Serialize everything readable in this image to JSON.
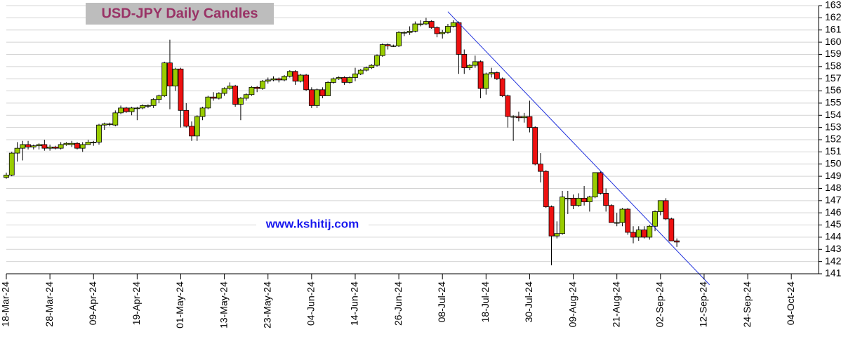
{
  "chart_data": {
    "type": "candlestick",
    "title": "USD-JPY Daily Candles",
    "annotation": "www.kshitij.com",
    "up_color": "#99cc00",
    "down_color": "#ee1111",
    "grid": true,
    "xlim": [
      "18-Mar-24",
      "11-Oct-24"
    ],
    "xticks": [
      "18-Mar-24",
      "28-Mar-24",
      "09-Apr-24",
      "19-Apr-24",
      "01-May-24",
      "13-May-24",
      "23-May-24",
      "04-Jun-24",
      "14-Jun-24",
      "26-Jun-24",
      "08-Jul-24",
      "18-Jul-24",
      "30-Jul-24",
      "09-Aug-24",
      "21-Aug-24",
      "02-Sep-24",
      "12-Sep-24",
      "24-Sep-24",
      "04-Oct-24"
    ],
    "ylim": [
      141,
      163
    ],
    "yticks": [
      141,
      142,
      143,
      144,
      145,
      146,
      147,
      148,
      149,
      150,
      151,
      152,
      153,
      154,
      155,
      156,
      157,
      158,
      159,
      160,
      161,
      162,
      163
    ],
    "trendline": {
      "color": "#2233dd",
      "x": [
        "09-Jul-24",
        "13-Sep-24"
      ],
      "y": [
        162.5,
        140.1
      ]
    },
    "candles": [
      {
        "date": "18-Mar-24",
        "open": 148.9,
        "high": 149.3,
        "low": 148.8,
        "close": 149.1
      },
      {
        "date": "19-Mar-24",
        "open": 149.1,
        "high": 151.0,
        "low": 149.0,
        "close": 150.9
      },
      {
        "date": "20-Mar-24",
        "open": 150.9,
        "high": 151.8,
        "low": 150.2,
        "close": 151.3
      },
      {
        "date": "21-Mar-24",
        "open": 151.3,
        "high": 151.9,
        "low": 150.3,
        "close": 151.6
      },
      {
        "date": "22-Mar-24",
        "open": 151.6,
        "high": 151.9,
        "low": 151.2,
        "close": 151.4
      },
      {
        "date": "25-Mar-24",
        "open": 151.4,
        "high": 151.6,
        "low": 151.2,
        "close": 151.5
      },
      {
        "date": "26-Mar-24",
        "open": 151.5,
        "high": 151.7,
        "low": 151.2,
        "close": 151.6
      },
      {
        "date": "27-Mar-24",
        "open": 151.6,
        "high": 152.0,
        "low": 151.1,
        "close": 151.3
      },
      {
        "date": "28-Mar-24",
        "open": 151.3,
        "high": 151.6,
        "low": 151.1,
        "close": 151.4
      },
      {
        "date": "29-Mar-24",
        "open": 151.4,
        "high": 151.5,
        "low": 151.2,
        "close": 151.3
      },
      {
        "date": "01-Apr-24",
        "open": 151.3,
        "high": 151.8,
        "low": 151.2,
        "close": 151.6
      },
      {
        "date": "02-Apr-24",
        "open": 151.6,
        "high": 151.8,
        "low": 151.5,
        "close": 151.7
      },
      {
        "date": "03-Apr-24",
        "open": 151.6,
        "high": 151.9,
        "low": 151.4,
        "close": 151.7
      },
      {
        "date": "04-Apr-24",
        "open": 151.7,
        "high": 151.8,
        "low": 151.2,
        "close": 151.3
      },
      {
        "date": "05-Apr-24",
        "open": 151.3,
        "high": 151.8,
        "low": 151.0,
        "close": 151.6
      },
      {
        "date": "08-Apr-24",
        "open": 151.6,
        "high": 152.0,
        "low": 151.6,
        "close": 151.8
      },
      {
        "date": "09-Apr-24",
        "open": 151.8,
        "high": 151.9,
        "low": 151.5,
        "close": 151.8
      },
      {
        "date": "10-Apr-24",
        "open": 151.8,
        "high": 153.3,
        "low": 151.6,
        "close": 153.2
      },
      {
        "date": "11-Apr-24",
        "open": 153.2,
        "high": 153.4,
        "low": 152.8,
        "close": 153.3
      },
      {
        "date": "12-Apr-24",
        "open": 153.3,
        "high": 153.4,
        "low": 153.1,
        "close": 153.3
      },
      {
        "date": "15-Apr-24",
        "open": 153.2,
        "high": 154.4,
        "low": 153.1,
        "close": 154.2
      },
      {
        "date": "16-Apr-24",
        "open": 154.2,
        "high": 154.8,
        "low": 154.1,
        "close": 154.6
      },
      {
        "date": "17-Apr-24",
        "open": 154.6,
        "high": 154.7,
        "low": 154.2,
        "close": 154.3
      },
      {
        "date": "18-Apr-24",
        "open": 154.3,
        "high": 154.7,
        "low": 154.0,
        "close": 154.6
      },
      {
        "date": "19-Apr-24",
        "open": 154.6,
        "high": 154.7,
        "low": 153.6,
        "close": 154.6
      },
      {
        "date": "22-Apr-24",
        "open": 154.6,
        "high": 154.9,
        "low": 154.5,
        "close": 154.8
      },
      {
        "date": "23-Apr-24",
        "open": 154.8,
        "high": 154.9,
        "low": 154.6,
        "close": 154.8
      },
      {
        "date": "24-Apr-24",
        "open": 154.8,
        "high": 155.4,
        "low": 154.6,
        "close": 155.3
      },
      {
        "date": "25-Apr-24",
        "open": 155.3,
        "high": 155.7,
        "low": 155.0,
        "close": 155.6
      },
      {
        "date": "26-Apr-24",
        "open": 155.6,
        "high": 158.4,
        "low": 155.5,
        "close": 158.3
      },
      {
        "date": "29-Apr-24",
        "open": 158.3,
        "high": 160.2,
        "low": 154.5,
        "close": 156.4
      },
      {
        "date": "30-Apr-24",
        "open": 156.4,
        "high": 157.9,
        "low": 156.0,
        "close": 157.8
      },
      {
        "date": "01-May-24",
        "open": 157.8,
        "high": 157.9,
        "low": 153.0,
        "close": 154.4
      },
      {
        "date": "02-May-24",
        "open": 154.4,
        "high": 155.0,
        "low": 153.0,
        "close": 153.1
      },
      {
        "date": "03-May-24",
        "open": 153.1,
        "high": 153.5,
        "low": 151.9,
        "close": 152.3
      },
      {
        "date": "06-May-24",
        "open": 152.3,
        "high": 154.0,
        "low": 151.9,
        "close": 153.9
      },
      {
        "date": "07-May-24",
        "open": 153.9,
        "high": 154.7,
        "low": 153.6,
        "close": 154.6
      },
      {
        "date": "08-May-24",
        "open": 154.6,
        "high": 155.6,
        "low": 154.5,
        "close": 155.5
      },
      {
        "date": "09-May-24",
        "open": 155.5,
        "high": 155.9,
        "low": 155.2,
        "close": 155.4
      },
      {
        "date": "10-May-24",
        "open": 155.4,
        "high": 155.9,
        "low": 155.3,
        "close": 155.8
      },
      {
        "date": "13-May-24",
        "open": 155.8,
        "high": 156.3,
        "low": 155.6,
        "close": 156.2
      },
      {
        "date": "14-May-24",
        "open": 156.2,
        "high": 156.7,
        "low": 156.1,
        "close": 156.4
      },
      {
        "date": "15-May-24",
        "open": 156.4,
        "high": 156.5,
        "low": 154.7,
        "close": 154.9
      },
      {
        "date": "16-May-24",
        "open": 154.9,
        "high": 155.5,
        "low": 153.6,
        "close": 155.4
      },
      {
        "date": "17-May-24",
        "open": 155.4,
        "high": 155.8,
        "low": 155.2,
        "close": 155.7
      },
      {
        "date": "20-May-24",
        "open": 155.7,
        "high": 156.4,
        "low": 155.6,
        "close": 156.3
      },
      {
        "date": "21-May-24",
        "open": 156.3,
        "high": 156.4,
        "low": 155.9,
        "close": 156.2
      },
      {
        "date": "22-May-24",
        "open": 156.2,
        "high": 156.9,
        "low": 156.1,
        "close": 156.8
      },
      {
        "date": "23-May-24",
        "open": 156.8,
        "high": 157.1,
        "low": 156.6,
        "close": 156.9
      },
      {
        "date": "24-May-24",
        "open": 156.9,
        "high": 157.2,
        "low": 156.8,
        "close": 157.0
      },
      {
        "date": "27-May-24",
        "open": 157.0,
        "high": 157.1,
        "low": 156.7,
        "close": 156.9
      },
      {
        "date": "28-May-24",
        "open": 156.9,
        "high": 157.3,
        "low": 156.8,
        "close": 157.2
      },
      {
        "date": "29-May-24",
        "open": 157.2,
        "high": 157.7,
        "low": 157.1,
        "close": 157.6
      },
      {
        "date": "30-May-24",
        "open": 157.6,
        "high": 157.7,
        "low": 156.5,
        "close": 156.8
      },
      {
        "date": "31-May-24",
        "open": 156.8,
        "high": 157.4,
        "low": 156.7,
        "close": 157.3
      },
      {
        "date": "03-Jun-24",
        "open": 157.3,
        "high": 157.4,
        "low": 156.0,
        "close": 156.1
      },
      {
        "date": "04-Jun-24",
        "open": 156.1,
        "high": 156.3,
        "low": 154.6,
        "close": 154.8
      },
      {
        "date": "05-Jun-24",
        "open": 154.8,
        "high": 156.2,
        "low": 154.6,
        "close": 156.1
      },
      {
        "date": "06-Jun-24",
        "open": 156.1,
        "high": 156.3,
        "low": 155.4,
        "close": 155.6
      },
      {
        "date": "07-Jun-24",
        "open": 155.6,
        "high": 156.8,
        "low": 155.6,
        "close": 156.7
      },
      {
        "date": "10-Jun-24",
        "open": 156.7,
        "high": 157.1,
        "low": 156.6,
        "close": 157.0
      },
      {
        "date": "11-Jun-24",
        "open": 157.0,
        "high": 157.2,
        "low": 156.9,
        "close": 157.1
      },
      {
        "date": "12-Jun-24",
        "open": 157.1,
        "high": 157.2,
        "low": 156.5,
        "close": 156.7
      },
      {
        "date": "13-Jun-24",
        "open": 156.7,
        "high": 157.2,
        "low": 156.6,
        "close": 157.1
      },
      {
        "date": "14-Jun-24",
        "open": 157.1,
        "high": 157.9,
        "low": 156.8,
        "close": 157.4
      },
      {
        "date": "17-Jun-24",
        "open": 157.4,
        "high": 157.8,
        "low": 157.3,
        "close": 157.7
      },
      {
        "date": "18-Jun-24",
        "open": 157.7,
        "high": 158.0,
        "low": 157.6,
        "close": 157.9
      },
      {
        "date": "19-Jun-24",
        "open": 157.9,
        "high": 158.2,
        "low": 157.8,
        "close": 158.1
      },
      {
        "date": "20-Jun-24",
        "open": 158.1,
        "high": 159.0,
        "low": 158.0,
        "close": 158.9
      },
      {
        "date": "21-Jun-24",
        "open": 158.9,
        "high": 159.9,
        "low": 158.8,
        "close": 159.8
      },
      {
        "date": "24-Jun-24",
        "open": 159.8,
        "high": 159.9,
        "low": 159.4,
        "close": 159.7
      },
      {
        "date": "25-Jun-24",
        "open": 159.7,
        "high": 159.8,
        "low": 159.6,
        "close": 159.7
      },
      {
        "date": "26-Jun-24",
        "open": 159.7,
        "high": 160.9,
        "low": 159.6,
        "close": 160.8
      },
      {
        "date": "27-Jun-24",
        "open": 160.8,
        "high": 160.9,
        "low": 160.5,
        "close": 160.8
      },
      {
        "date": "28-Jun-24",
        "open": 160.8,
        "high": 161.3,
        "low": 160.6,
        "close": 160.9
      },
      {
        "date": "01-Jul-24",
        "open": 160.9,
        "high": 161.7,
        "low": 160.8,
        "close": 161.5
      },
      {
        "date": "02-Jul-24",
        "open": 161.5,
        "high": 161.8,
        "low": 161.3,
        "close": 161.5
      },
      {
        "date": "03-Jul-24",
        "open": 161.5,
        "high": 162.0,
        "low": 161.4,
        "close": 161.7
      },
      {
        "date": "04-Jul-24",
        "open": 161.7,
        "high": 161.8,
        "low": 161.1,
        "close": 161.2
      },
      {
        "date": "05-Jul-24",
        "open": 161.2,
        "high": 161.3,
        "low": 160.4,
        "close": 160.7
      },
      {
        "date": "08-Jul-24",
        "open": 160.7,
        "high": 161.0,
        "low": 160.3,
        "close": 160.8
      },
      {
        "date": "09-Jul-24",
        "open": 160.8,
        "high": 161.5,
        "low": 160.7,
        "close": 161.3
      },
      {
        "date": "10-Jul-24",
        "open": 161.3,
        "high": 161.8,
        "low": 161.2,
        "close": 161.6
      },
      {
        "date": "11-Jul-24",
        "open": 161.6,
        "high": 161.7,
        "low": 157.4,
        "close": 159.0
      },
      {
        "date": "12-Jul-24",
        "open": 159.0,
        "high": 159.4,
        "low": 157.4,
        "close": 157.9
      },
      {
        "date": "15-Jul-24",
        "open": 157.9,
        "high": 158.2,
        "low": 157.7,
        "close": 158.1
      },
      {
        "date": "16-Jul-24",
        "open": 158.1,
        "high": 158.9,
        "low": 157.9,
        "close": 158.4
      },
      {
        "date": "17-Jul-24",
        "open": 158.4,
        "high": 158.5,
        "low": 155.4,
        "close": 156.2
      },
      {
        "date": "18-Jul-24",
        "open": 156.2,
        "high": 157.5,
        "low": 155.7,
        "close": 157.4
      },
      {
        "date": "19-Jul-24",
        "open": 157.4,
        "high": 157.9,
        "low": 157.1,
        "close": 157.5
      },
      {
        "date": "22-Jul-24",
        "open": 157.5,
        "high": 157.6,
        "low": 156.9,
        "close": 157.0
      },
      {
        "date": "23-Jul-24",
        "open": 157.0,
        "high": 157.1,
        "low": 155.5,
        "close": 155.6
      },
      {
        "date": "24-Jul-24",
        "open": 155.6,
        "high": 155.7,
        "low": 153.0,
        "close": 153.9
      },
      {
        "date": "25-Jul-24",
        "open": 153.9,
        "high": 154.0,
        "low": 151.9,
        "close": 153.9
      },
      {
        "date": "26-Jul-24",
        "open": 153.9,
        "high": 154.3,
        "low": 153.5,
        "close": 153.8
      },
      {
        "date": "29-Jul-24",
        "open": 153.8,
        "high": 154.2,
        "low": 153.4,
        "close": 153.9
      },
      {
        "date": "30-Jul-24",
        "open": 153.9,
        "high": 155.2,
        "low": 152.6,
        "close": 153.0
      },
      {
        "date": "31-Jul-24",
        "open": 153.0,
        "high": 153.1,
        "low": 149.9,
        "close": 150.0
      },
      {
        "date": "01-Aug-24",
        "open": 150.0,
        "high": 150.9,
        "low": 148.5,
        "close": 149.4
      },
      {
        "date": "02-Aug-24",
        "open": 149.4,
        "high": 149.5,
        "low": 146.4,
        "close": 146.5
      },
      {
        "date": "05-Aug-24",
        "open": 146.5,
        "high": 146.6,
        "low": 141.7,
        "close": 144.1
      },
      {
        "date": "06-Aug-24",
        "open": 144.1,
        "high": 145.3,
        "low": 143.9,
        "close": 144.3
      },
      {
        "date": "07-Aug-24",
        "open": 144.3,
        "high": 147.8,
        "low": 144.2,
        "close": 147.3
      },
      {
        "date": "08-Aug-24",
        "open": 147.2,
        "high": 147.8,
        "low": 145.9,
        "close": 147.2
      },
      {
        "date": "09-Aug-24",
        "open": 147.2,
        "high": 147.5,
        "low": 146.3,
        "close": 146.6
      },
      {
        "date": "12-Aug-24",
        "open": 146.6,
        "high": 147.6,
        "low": 146.5,
        "close": 147.2
      },
      {
        "date": "13-Aug-24",
        "open": 147.2,
        "high": 148.2,
        "low": 146.6,
        "close": 146.9
      },
      {
        "date": "14-Aug-24",
        "open": 146.9,
        "high": 147.4,
        "low": 146.1,
        "close": 147.3
      },
      {
        "date": "15-Aug-24",
        "open": 147.3,
        "high": 149.3,
        "low": 147.2,
        "close": 149.3
      },
      {
        "date": "16-Aug-24",
        "open": 149.3,
        "high": 149.4,
        "low": 147.5,
        "close": 147.6
      },
      {
        "date": "19-Aug-24",
        "open": 147.6,
        "high": 148.0,
        "low": 146.1,
        "close": 146.6
      },
      {
        "date": "20-Aug-24",
        "open": 146.6,
        "high": 146.7,
        "low": 145.2,
        "close": 145.2
      },
      {
        "date": "21-Aug-24",
        "open": 145.2,
        "high": 146.0,
        "low": 144.9,
        "close": 145.2
      },
      {
        "date": "22-Aug-24",
        "open": 145.2,
        "high": 146.4,
        "low": 144.9,
        "close": 146.3
      },
      {
        "date": "23-Aug-24",
        "open": 146.3,
        "high": 146.4,
        "low": 144.2,
        "close": 144.4
      },
      {
        "date": "26-Aug-24",
        "open": 144.4,
        "high": 144.9,
        "low": 143.5,
        "close": 144.0
      },
      {
        "date": "27-Aug-24",
        "open": 144.0,
        "high": 144.9,
        "low": 143.7,
        "close": 144.6
      },
      {
        "date": "28-Aug-24",
        "open": 144.6,
        "high": 144.9,
        "low": 143.9,
        "close": 144.0
      },
      {
        "date": "29-Aug-24",
        "open": 144.0,
        "high": 145.0,
        "low": 143.8,
        "close": 144.9
      },
      {
        "date": "30-Aug-24",
        "open": 144.9,
        "high": 146.2,
        "low": 144.5,
        "close": 146.1
      },
      {
        "date": "02-Sep-24",
        "open": 146.1,
        "high": 147.0,
        "low": 145.8,
        "close": 147.0
      },
      {
        "date": "03-Sep-24",
        "open": 147.0,
        "high": 147.2,
        "low": 145.4,
        "close": 145.5
      },
      {
        "date": "04-Sep-24",
        "open": 145.5,
        "high": 145.6,
        "low": 143.7,
        "close": 143.7
      },
      {
        "date": "05-Sep-24",
        "open": 143.7,
        "high": 143.9,
        "low": 143.2,
        "close": 143.6
      }
    ]
  }
}
